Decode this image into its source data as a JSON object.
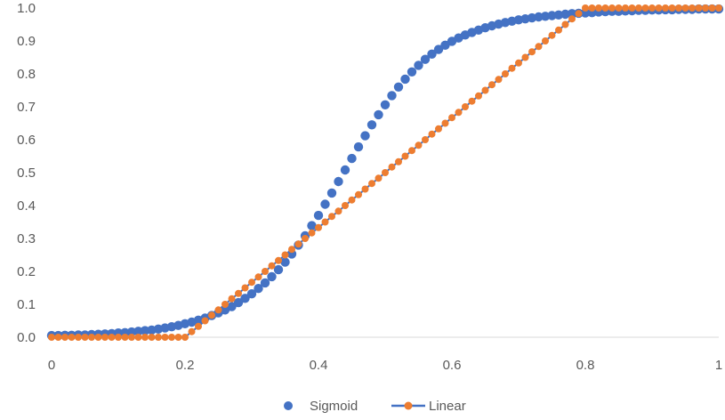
{
  "chart_data": {
    "type": "scatter",
    "title": "",
    "xlabel": "",
    "ylabel": "",
    "xlim": [
      0,
      1
    ],
    "ylim": [
      0,
      1
    ],
    "x_ticks": [
      "0",
      "0.2",
      "0.4",
      "0.6",
      "0.8",
      "1"
    ],
    "y_ticks": [
      "0.0",
      "0.1",
      "0.2",
      "0.3",
      "0.4",
      "0.5",
      "0.6",
      "0.7",
      "0.8",
      "0.9",
      "1.0"
    ],
    "gridlines": false,
    "legend_position": "bottom",
    "series": [
      {
        "name": "Sigmoid",
        "marker": "circle",
        "line": false,
        "color": "#4472C4",
        "x": [
          0.0,
          0.01,
          0.02,
          0.03,
          0.04,
          0.05,
          0.06,
          0.07,
          0.08,
          0.09,
          0.1,
          0.11,
          0.12,
          0.13,
          0.14,
          0.15,
          0.16,
          0.17,
          0.18,
          0.19,
          0.2,
          0.21,
          0.22,
          0.23,
          0.24,
          0.25,
          0.26,
          0.27,
          0.28,
          0.29,
          0.3,
          0.31,
          0.32,
          0.33,
          0.34,
          0.35,
          0.36,
          0.37,
          0.38,
          0.39,
          0.4,
          0.41,
          0.42,
          0.43,
          0.44,
          0.45,
          0.46,
          0.47,
          0.48,
          0.49,
          0.5,
          0.51,
          0.52,
          0.53,
          0.54,
          0.55,
          0.56,
          0.57,
          0.58,
          0.59,
          0.6,
          0.61,
          0.62,
          0.63,
          0.64,
          0.65,
          0.66,
          0.67,
          0.68,
          0.69,
          0.7,
          0.71,
          0.72,
          0.73,
          0.74,
          0.75,
          0.76,
          0.77,
          0.78,
          0.79,
          0.8,
          0.81,
          0.82,
          0.83,
          0.84,
          0.85,
          0.86,
          0.87,
          0.88,
          0.89,
          0.9,
          0.91,
          0.92,
          0.93,
          0.94,
          0.95,
          0.96,
          0.97,
          0.98,
          0.99,
          1.0
        ],
        "y": [
          0.005,
          0.005,
          0.006,
          0.006,
          0.007,
          0.007,
          0.008,
          0.009,
          0.01,
          0.011,
          0.013,
          0.014,
          0.016,
          0.018,
          0.02,
          0.022,
          0.025,
          0.028,
          0.032,
          0.036,
          0.041,
          0.046,
          0.052,
          0.058,
          0.066,
          0.074,
          0.083,
          0.093,
          0.105,
          0.118,
          0.132,
          0.148,
          0.165,
          0.184,
          0.205,
          0.228,
          0.253,
          0.28,
          0.308,
          0.339,
          0.37,
          0.404,
          0.438,
          0.473,
          0.508,
          0.543,
          0.578,
          0.612,
          0.645,
          0.676,
          0.706,
          0.734,
          0.76,
          0.784,
          0.806,
          0.826,
          0.844,
          0.86,
          0.874,
          0.887,
          0.899,
          0.909,
          0.918,
          0.926,
          0.933,
          0.94,
          0.946,
          0.951,
          0.956,
          0.96,
          0.964,
          0.967,
          0.97,
          0.973,
          0.975,
          0.977,
          0.979,
          0.981,
          0.983,
          0.984,
          0.985,
          0.986,
          0.988,
          0.989,
          0.99,
          0.99,
          0.991,
          0.992,
          0.993,
          0.993,
          0.994,
          0.994,
          0.995,
          0.995,
          0.996,
          0.996,
          0.996,
          0.997,
          0.997,
          0.997,
          0.997
        ]
      },
      {
        "name": "Linear",
        "marker": "circle",
        "line": true,
        "color": "#ED7D31",
        "line_color": "#4472C4",
        "x": [
          0.0,
          0.01,
          0.02,
          0.03,
          0.04,
          0.05,
          0.06,
          0.07,
          0.08,
          0.09,
          0.1,
          0.11,
          0.12,
          0.13,
          0.14,
          0.15,
          0.16,
          0.17,
          0.18,
          0.19,
          0.2,
          0.21,
          0.22,
          0.23,
          0.24,
          0.25,
          0.26,
          0.27,
          0.28,
          0.29,
          0.3,
          0.31,
          0.32,
          0.33,
          0.34,
          0.35,
          0.36,
          0.37,
          0.38,
          0.39,
          0.4,
          0.41,
          0.42,
          0.43,
          0.44,
          0.45,
          0.46,
          0.47,
          0.48,
          0.49,
          0.5,
          0.51,
          0.52,
          0.53,
          0.54,
          0.55,
          0.56,
          0.57,
          0.58,
          0.59,
          0.6,
          0.61,
          0.62,
          0.63,
          0.64,
          0.65,
          0.66,
          0.67,
          0.68,
          0.69,
          0.7,
          0.71,
          0.72,
          0.73,
          0.74,
          0.75,
          0.76,
          0.77,
          0.78,
          0.79,
          0.8,
          0.81,
          0.82,
          0.83,
          0.84,
          0.85,
          0.86,
          0.87,
          0.88,
          0.89,
          0.9,
          0.91,
          0.92,
          0.93,
          0.94,
          0.95,
          0.96,
          0.97,
          0.98,
          0.99,
          1.0
        ],
        "y": [
          0.0,
          0.0,
          0.0,
          0.0,
          0.0,
          0.0,
          0.0,
          0.0,
          0.0,
          0.0,
          0.0,
          0.0,
          0.0,
          0.0,
          0.0,
          0.0,
          0.0,
          0.0,
          0.0,
          0.0,
          0.0,
          0.017,
          0.033,
          0.05,
          0.067,
          0.083,
          0.1,
          0.117,
          0.133,
          0.15,
          0.167,
          0.183,
          0.2,
          0.217,
          0.233,
          0.25,
          0.267,
          0.283,
          0.3,
          0.317,
          0.333,
          0.35,
          0.367,
          0.383,
          0.4,
          0.417,
          0.433,
          0.45,
          0.467,
          0.483,
          0.5,
          0.517,
          0.533,
          0.55,
          0.567,
          0.583,
          0.6,
          0.617,
          0.633,
          0.65,
          0.667,
          0.683,
          0.7,
          0.717,
          0.733,
          0.75,
          0.767,
          0.783,
          0.8,
          0.817,
          0.833,
          0.85,
          0.867,
          0.883,
          0.9,
          0.917,
          0.933,
          0.95,
          0.967,
          0.983,
          1.0,
          1.0,
          1.0,
          1.0,
          1.0,
          1.0,
          1.0,
          1.0,
          1.0,
          1.0,
          1.0,
          1.0,
          1.0,
          1.0,
          1.0,
          1.0,
          1.0,
          1.0,
          1.0,
          1.0,
          1.0
        ]
      }
    ]
  }
}
